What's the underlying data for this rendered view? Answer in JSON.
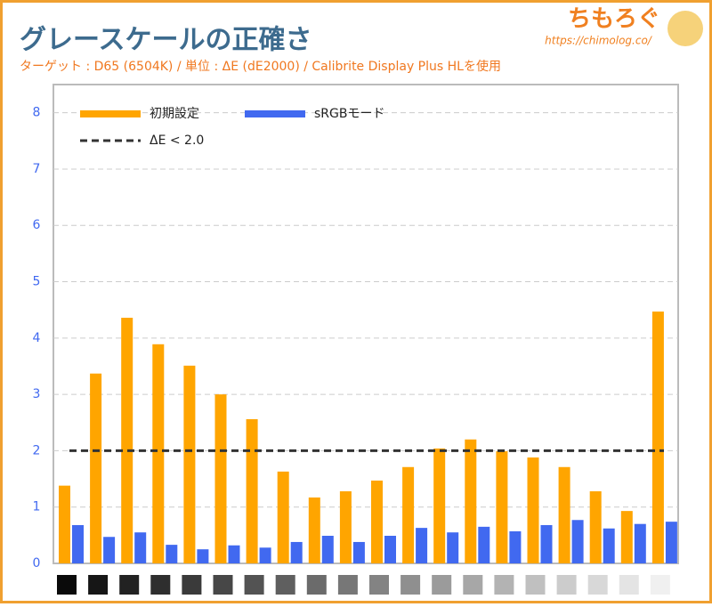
{
  "chart_data": {
    "type": "bar",
    "title": "グレースケールの正確さ",
    "subtitle": "ターゲット : D65 (6504K) / 単位 : ΔE (dE2000) / Calibrite Display Plus HLを使用",
    "watermark": {
      "title": "ちもろぐ",
      "url": "https://chimolog.co/"
    },
    "categories": [
      null,
      null,
      null,
      null,
      null,
      null,
      null,
      null,
      null,
      null,
      null,
      null,
      null,
      null,
      null,
      null,
      null,
      null,
      null,
      null
    ],
    "series": [
      {
        "name": "初期設定",
        "color": "#ffa500",
        "values": [
          1.38,
          3.37,
          4.36,
          3.89,
          3.51,
          3.0,
          2.56,
          1.63,
          1.17,
          1.28,
          1.47,
          1.71,
          2.04,
          2.2,
          1.99,
          1.88,
          1.71,
          1.28,
          0.93,
          4.47
        ]
      },
      {
        "name": "sRGBモード",
        "color": "#4169f0",
        "values": [
          0.68,
          0.47,
          0.55,
          0.33,
          0.25,
          0.32,
          0.28,
          0.38,
          0.49,
          0.38,
          0.49,
          0.63,
          0.55,
          0.65,
          0.57,
          0.68,
          0.77,
          0.62,
          0.7,
          0.74
        ]
      }
    ],
    "reference_line": {
      "name": "ΔE < 2.0",
      "value": 2,
      "color": "#333333"
    },
    "ylim": [
      0,
      8.5
    ],
    "yticks": [
      0,
      1,
      2,
      3,
      4,
      5,
      6,
      7,
      8
    ],
    "grid": true
  }
}
